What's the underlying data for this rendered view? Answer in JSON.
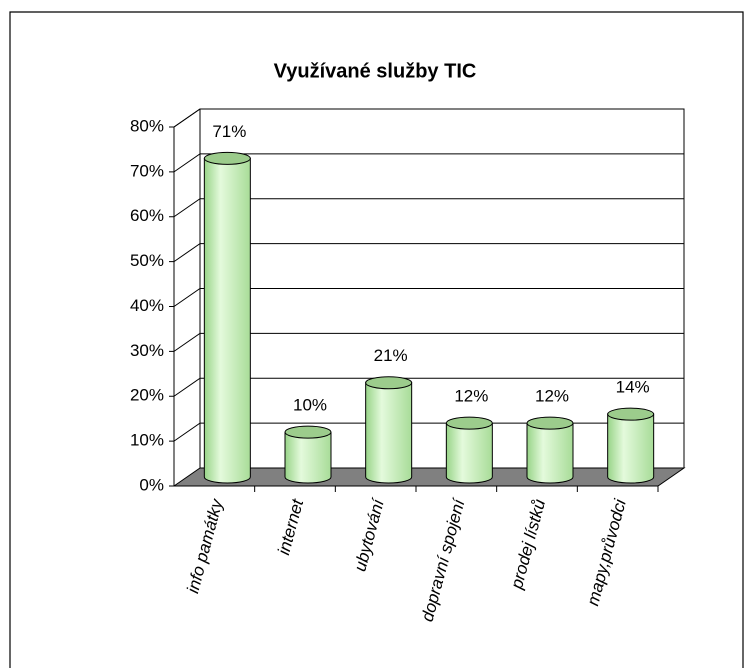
{
  "chart_data": {
    "type": "bar",
    "title": "Využívané služby TIC",
    "categories": [
      "info památky",
      "internet",
      "ubytování",
      "dopravní spojení",
      "prodej lístků",
      "mapy,průvodci"
    ],
    "values": [
      71,
      10,
      21,
      12,
      12,
      14
    ],
    "value_labels": [
      "71%",
      "10%",
      "21%",
      "12%",
      "12%",
      "14%"
    ],
    "color": "#b8e8a8",
    "ylim": [
      0,
      80
    ],
    "yticks": [
      {
        "value": 0,
        "label": "0%"
      },
      {
        "value": 10,
        "label": "10%"
      },
      {
        "value": 20,
        "label": "20%"
      },
      {
        "value": 30,
        "label": "30%"
      },
      {
        "value": 40,
        "label": "40%"
      },
      {
        "value": 50,
        "label": "50%"
      },
      {
        "value": 60,
        "label": "60%"
      },
      {
        "value": 70,
        "label": "70%"
      },
      {
        "value": 80,
        "label": "80%"
      }
    ],
    "grid": true
  }
}
